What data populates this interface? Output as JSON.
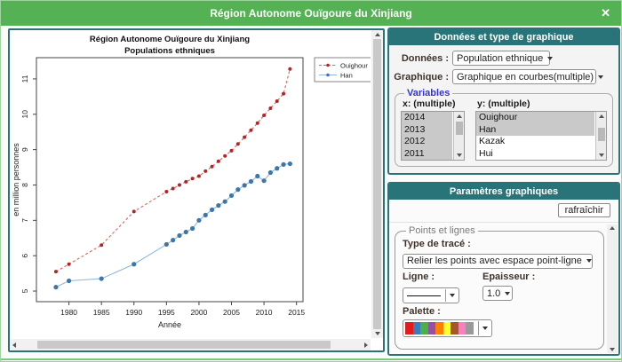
{
  "window": {
    "title": "Région Autonome Ouïgoure du Xinjiang"
  },
  "colors": {
    "titlebar_green": "#54b254",
    "window_edge_green": "#9ed49e",
    "bottom_green": "#7cc87c",
    "header_teal": "#287478",
    "panel_border_teal": "#287478",
    "label_brown": "#3f332b",
    "variables_blue": "#3434cc",
    "fieldset_gray": "#7a7a7a",
    "selected_item_gray": "#c9c9c9"
  },
  "chart_data": {
    "type": "line",
    "title": "Région Autonome Ouïgoure du Xinjiang",
    "subtitle": "Populations ethniques",
    "xlabel": "Année",
    "ylabel": "en million personnes",
    "xlim": [
      1975,
      2016
    ],
    "ylim": [
      4.7,
      11.6
    ],
    "xticks": [
      1980,
      1985,
      1990,
      1995,
      2000,
      2005,
      2010,
      2015
    ],
    "yticks": [
      5,
      6,
      7,
      8,
      9,
      10,
      11
    ],
    "grid": false,
    "legend_position": "top-right-outside",
    "x": [
      1978,
      1980,
      1985,
      1990,
      1995,
      1996,
      1997,
      1998,
      1999,
      2000,
      2001,
      2002,
      2003,
      2004,
      2005,
      2006,
      2007,
      2008,
      2009,
      2010,
      2011,
      2012,
      2013,
      2014
    ],
    "series": [
      {
        "name": "Ouighour",
        "line_color": "#e56060",
        "point_color": "#b02525",
        "line_style": "dashed",
        "point_radius": 2,
        "values": [
          5.55,
          5.76,
          6.3,
          7.25,
          7.81,
          7.9,
          8.0,
          8.09,
          8.18,
          8.25,
          8.39,
          8.52,
          8.67,
          8.82,
          8.97,
          9.16,
          9.35,
          9.55,
          9.75,
          9.97,
          10.17,
          10.37,
          10.58,
          11.28
        ]
      },
      {
        "name": "Han",
        "line_color": "#92b8d8",
        "point_color": "#3d76ab",
        "line_style": "solid",
        "point_radius": 2.6,
        "values": [
          5.11,
          5.29,
          5.35,
          5.76,
          6.32,
          6.44,
          6.57,
          6.67,
          6.77,
          7.0,
          7.15,
          7.3,
          7.42,
          7.53,
          7.7,
          7.87,
          7.99,
          8.1,
          8.25,
          8.12,
          8.35,
          8.47,
          8.58,
          8.6
        ]
      }
    ]
  },
  "data_panel": {
    "header": "Données et type de graphique",
    "donnees_label": "Données :",
    "donnees_value": "Population ethnique",
    "graphique_label": "Graphique :",
    "graphique_value": "Graphique en courbes(multiple)",
    "variables": {
      "legend": "Variables",
      "x_header": "x: (multiple)",
      "y_header": "y: (multiple)",
      "x_items": [
        {
          "label": "2014",
          "selected": true
        },
        {
          "label": "2013",
          "selected": true
        },
        {
          "label": "2012",
          "selected": true
        },
        {
          "label": "2011",
          "selected": true
        }
      ],
      "y_items": [
        {
          "label": "Ouighour",
          "selected": true
        },
        {
          "label": "Han",
          "selected": true
        },
        {
          "label": "Kazak",
          "selected": false
        },
        {
          "label": "Hui",
          "selected": false
        }
      ]
    }
  },
  "params_panel": {
    "header": "Paramètres graphiques",
    "refresh_button": "rafraîchir",
    "points_lines": {
      "legend": "Points et lignes",
      "trace_label": "Type de tracé :",
      "trace_value": "Relier les points avec espace point-ligne",
      "ligne_label": "Ligne :",
      "epaisseur_label": "Epaisseur :",
      "epaisseur_value": "1.0",
      "palette_label": "Palette :",
      "palette_colors": [
        "#e41a1c",
        "#377eb8",
        "#4daf4a",
        "#984ea3",
        "#ff7f00",
        "#ffff33",
        "#a65628",
        "#f781bf",
        "#999999"
      ]
    }
  }
}
